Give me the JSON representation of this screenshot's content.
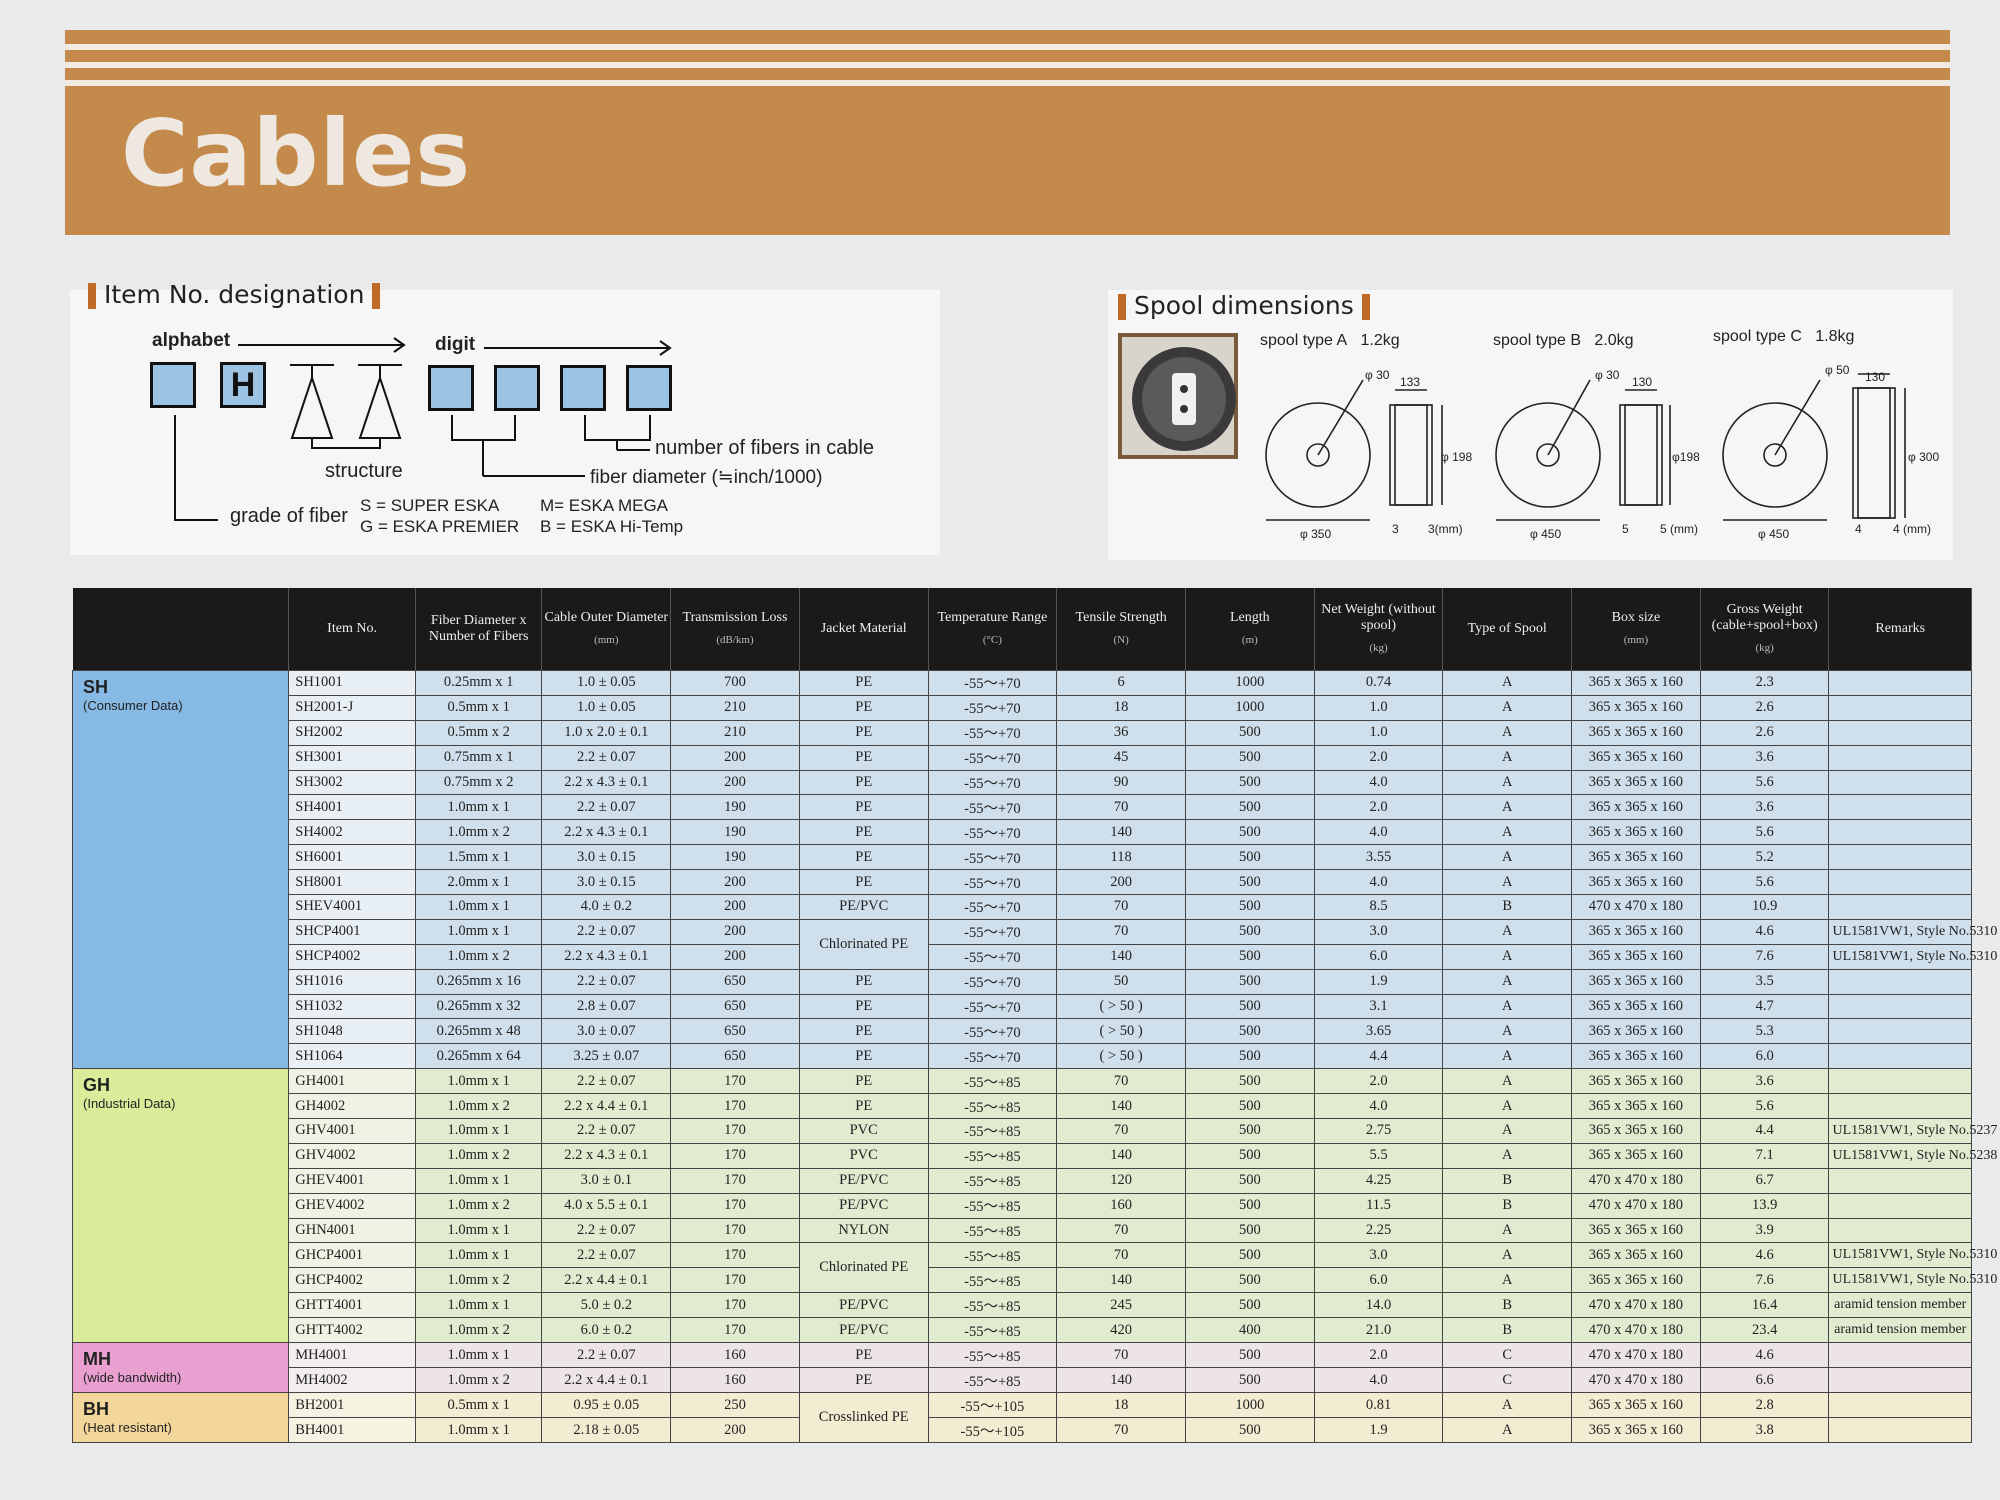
{
  "title": "Cables",
  "designation": {
    "heading": "Item No. designation",
    "alphabet": "alphabet",
    "digit": "digit",
    "box_letter": "H",
    "structure": "structure",
    "fibers_in_cable": "number of fibers in cable",
    "fiber_diameter": "fiber diameter (≒inch/1000)",
    "grade_of_fiber": "grade of fiber",
    "grades": [
      "S = SUPER ESKA",
      "G = ESKA PREMIER",
      "M= ESKA MEGA",
      "B = ESKA Hi-Temp"
    ]
  },
  "spools": {
    "heading": "Spool dimensions",
    "types": [
      {
        "label": "spool type A",
        "weight": "1.2kg",
        "hub": "φ 30",
        "width": "133",
        "height": "φ 198",
        "dia": "φ 350",
        "side": "3",
        "side_mm": "3(mm)"
      },
      {
        "label": "spool type B",
        "weight": "2.0kg",
        "hub": "φ 30",
        "width": "130",
        "height": "φ198",
        "dia": "φ 450",
        "side": "5",
        "side_mm": "5 (mm)"
      },
      {
        "label": "spool type C",
        "weight": "1.8kg",
        "hub": "φ 50",
        "width": "130",
        "height": "φ 300",
        "dia": "φ 450",
        "side": "4",
        "side_mm": "4 (mm)"
      }
    ]
  },
  "table": {
    "headers": [
      {
        "label": "",
        "unit": ""
      },
      {
        "label": "Item No.",
        "unit": ""
      },
      {
        "label": "Fiber Diameter x Number of Fibers",
        "unit": ""
      },
      {
        "label": "Cable Outer Diameter",
        "unit": "(mm)"
      },
      {
        "label": "Transmission Loss",
        "unit": "(dB/km)"
      },
      {
        "label": "Jacket Material",
        "unit": ""
      },
      {
        "label": "Temperature Range",
        "unit": "(°C)"
      },
      {
        "label": "Tensile Strength",
        "unit": "(N)"
      },
      {
        "label": "Length",
        "unit": "(m)"
      },
      {
        "label": "Net Weight (without spool)",
        "unit": "(kg)"
      },
      {
        "label": "Type of Spool",
        "unit": ""
      },
      {
        "label": "Box size",
        "unit": "(mm)"
      },
      {
        "label": "Gross Weight (cable+spool+box)",
        "unit": "(kg)"
      },
      {
        "label": "Remarks",
        "unit": ""
      }
    ],
    "groups": [
      {
        "code": "SH",
        "desc": "(Consumer Data)",
        "cls": "sh"
      },
      {
        "code": "GH",
        "desc": "(Industrial Data)",
        "cls": "gh"
      },
      {
        "code": "MH",
        "desc": "(wide bandwidth)",
        "cls": "mh"
      },
      {
        "code": "BH",
        "desc": "(Heat resistant)",
        "cls": "bh"
      }
    ],
    "rows": [
      {
        "g": 0,
        "c": [
          "SH1001",
          "0.25mm x 1",
          "1.0 ± 0.05",
          "700",
          "PE",
          "-55〜+70",
          "6",
          "1000",
          "0.74",
          "A",
          "365 x 365 x 160",
          "2.3",
          ""
        ]
      },
      {
        "g": 0,
        "c": [
          "SH2001-J",
          "0.5mm x 1",
          "1.0 ± 0.05",
          "210",
          "PE",
          "-55〜+70",
          "18",
          "1000",
          "1.0",
          "A",
          "365 x 365 x 160",
          "2.6",
          ""
        ]
      },
      {
        "g": 0,
        "c": [
          "SH2002",
          "0.5mm x 2",
          "1.0 x 2.0 ± 0.1",
          "210",
          "PE",
          "-55〜+70",
          "36",
          "500",
          "1.0",
          "A",
          "365 x 365 x 160",
          "2.6",
          ""
        ]
      },
      {
        "g": 0,
        "c": [
          "SH3001",
          "0.75mm x 1",
          "2.2 ± 0.07",
          "200",
          "PE",
          "-55〜+70",
          "45",
          "500",
          "2.0",
          "A",
          "365 x 365 x 160",
          "3.6",
          ""
        ]
      },
      {
        "g": 0,
        "c": [
          "SH3002",
          "0.75mm x 2",
          "2.2 x 4.3 ± 0.1",
          "200",
          "PE",
          "-55〜+70",
          "90",
          "500",
          "4.0",
          "A",
          "365 x 365 x 160",
          "5.6",
          ""
        ]
      },
      {
        "g": 0,
        "c": [
          "SH4001",
          "1.0mm x 1",
          "2.2 ± 0.07",
          "190",
          "PE",
          "-55〜+70",
          "70",
          "500",
          "2.0",
          "A",
          "365 x 365 x 160",
          "3.6",
          ""
        ]
      },
      {
        "g": 0,
        "c": [
          "SH4002",
          "1.0mm x 2",
          "2.2 x 4.3 ± 0.1",
          "190",
          "PE",
          "-55〜+70",
          "140",
          "500",
          "4.0",
          "A",
          "365 x 365 x 160",
          "5.6",
          ""
        ]
      },
      {
        "g": 0,
        "c": [
          "SH6001",
          "1.5mm x 1",
          "3.0 ± 0.15",
          "190",
          "PE",
          "-55〜+70",
          "118",
          "500",
          "3.55",
          "A",
          "365 x 365 x 160",
          "5.2",
          ""
        ]
      },
      {
        "g": 0,
        "c": [
          "SH8001",
          "2.0mm x 1",
          "3.0 ± 0.15",
          "200",
          "PE",
          "-55〜+70",
          "200",
          "500",
          "4.0",
          "A",
          "365 x 365 x 160",
          "5.6",
          ""
        ]
      },
      {
        "g": 0,
        "c": [
          "SHEV4001",
          "1.0mm x 1",
          "4.0 ± 0.2",
          "200",
          "PE/PVC",
          "-55〜+70",
          "70",
          "500",
          "8.5",
          "B",
          "470 x 470 x 180",
          "10.9",
          ""
        ]
      },
      {
        "g": 0,
        "c": [
          "SHCP4001",
          "1.0mm x 1",
          "2.2 ± 0.07",
          "200",
          "Chlorinated PE",
          "-55〜+70",
          "70",
          "500",
          "3.0",
          "A",
          "365 x 365 x 160",
          "4.6",
          "UL1581VW1, Style No.5310"
        ],
        "jspan": 2
      },
      {
        "g": 0,
        "c": [
          "SHCP4002",
          "1.0mm x 2",
          "2.2 x 4.3 ± 0.1",
          "200",
          "",
          "-55〜+70",
          "140",
          "500",
          "6.0",
          "A",
          "365 x 365 x 160",
          "7.6",
          "UL1581VW1, Style No.5310"
        ],
        "jskip": true
      },
      {
        "g": 0,
        "c": [
          "SH1016",
          "0.265mm x 16",
          "2.2 ± 0.07",
          "650",
          "PE",
          "-55〜+70",
          "50",
          "500",
          "1.9",
          "A",
          "365 x 365 x 160",
          "3.5",
          ""
        ]
      },
      {
        "g": 0,
        "c": [
          "SH1032",
          "0.265mm x 32",
          "2.8 ± 0.07",
          "650",
          "PE",
          "-55〜+70",
          "( > 50 )",
          "500",
          "3.1",
          "A",
          "365 x 365 x 160",
          "4.7",
          ""
        ]
      },
      {
        "g": 0,
        "c": [
          "SH1048",
          "0.265mm x 48",
          "3.0 ± 0.07",
          "650",
          "PE",
          "-55〜+70",
          "( > 50 )",
          "500",
          "3.65",
          "A",
          "365 x 365 x 160",
          "5.3",
          ""
        ]
      },
      {
        "g": 0,
        "c": [
          "SH1064",
          "0.265mm x 64",
          "3.25 ± 0.07",
          "650",
          "PE",
          "-55〜+70",
          "( > 50 )",
          "500",
          "4.4",
          "A",
          "365 x 365 x 160",
          "6.0",
          ""
        ]
      },
      {
        "g": 1,
        "c": [
          "GH4001",
          "1.0mm x 1",
          "2.2 ± 0.07",
          "170",
          "PE",
          "-55〜+85",
          "70",
          "500",
          "2.0",
          "A",
          "365 x 365 x 160",
          "3.6",
          ""
        ]
      },
      {
        "g": 1,
        "c": [
          "GH4002",
          "1.0mm x 2",
          "2.2 x 4.4 ± 0.1",
          "170",
          "PE",
          "-55〜+85",
          "140",
          "500",
          "4.0",
          "A",
          "365 x 365 x 160",
          "5.6",
          ""
        ]
      },
      {
        "g": 1,
        "c": [
          "GHV4001",
          "1.0mm x 1",
          "2.2 ± 0.07",
          "170",
          "PVC",
          "-55〜+85",
          "70",
          "500",
          "2.75",
          "A",
          "365 x 365 x 160",
          "4.4",
          "UL1581VW1, Style No.5237"
        ]
      },
      {
        "g": 1,
        "c": [
          "GHV4002",
          "1.0mm x 2",
          "2.2 x 4.3 ± 0.1",
          "170",
          "PVC",
          "-55〜+85",
          "140",
          "500",
          "5.5",
          "A",
          "365 x 365 x 160",
          "7.1",
          "UL1581VW1, Style No.5238"
        ]
      },
      {
        "g": 1,
        "c": [
          "GHEV4001",
          "1.0mm x 1",
          "3.0 ± 0.1",
          "170",
          "PE/PVC",
          "-55〜+85",
          "120",
          "500",
          "4.25",
          "B",
          "470 x 470 x 180",
          "6.7",
          ""
        ]
      },
      {
        "g": 1,
        "c": [
          "GHEV4002",
          "1.0mm x 2",
          "4.0 x 5.5 ± 0.1",
          "170",
          "PE/PVC",
          "-55〜+85",
          "160",
          "500",
          "11.5",
          "B",
          "470 x 470 x 180",
          "13.9",
          ""
        ]
      },
      {
        "g": 1,
        "c": [
          "GHN4001",
          "1.0mm x 1",
          "2.2 ± 0.07",
          "170",
          "NYLON",
          "-55〜+85",
          "70",
          "500",
          "2.25",
          "A",
          "365 x 365 x 160",
          "3.9",
          ""
        ]
      },
      {
        "g": 1,
        "c": [
          "GHCP4001",
          "1.0mm x 1",
          "2.2 ± 0.07",
          "170",
          "Chlorinated PE",
          "-55〜+85",
          "70",
          "500",
          "3.0",
          "A",
          "365 x 365 x 160",
          "4.6",
          "UL1581VW1, Style No.5310"
        ],
        "jspan": 2
      },
      {
        "g": 1,
        "c": [
          "GHCP4002",
          "1.0mm x 2",
          "2.2 x 4.4 ± 0.1",
          "170",
          "",
          "-55〜+85",
          "140",
          "500",
          "6.0",
          "A",
          "365 x 365 x 160",
          "7.6",
          "UL1581VW1, Style No.5310"
        ],
        "jskip": true
      },
      {
        "g": 1,
        "c": [
          "GHTT4001",
          "1.0mm x 1",
          "5.0 ± 0.2",
          "170",
          "PE/PVC",
          "-55〜+85",
          "245",
          "500",
          "14.0",
          "B",
          "470 x 470 x 180",
          "16.4",
          "aramid tension member"
        ]
      },
      {
        "g": 1,
        "c": [
          "GHTT4002",
          "1.0mm x 2",
          "6.0 ± 0.2",
          "170",
          "PE/PVC",
          "-55〜+85",
          "420",
          "400",
          "21.0",
          "B",
          "470 x 470 x 180",
          "23.4",
          "aramid tension member"
        ]
      },
      {
        "g": 2,
        "c": [
          "MH4001",
          "1.0mm x 1",
          "2.2 ± 0.07",
          "160",
          "PE",
          "-55〜+85",
          "70",
          "500",
          "2.0",
          "C",
          "470 x 470 x 180",
          "4.6",
          ""
        ]
      },
      {
        "g": 2,
        "c": [
          "MH4002",
          "1.0mm x 2",
          "2.2 x 4.4 ± 0.1",
          "160",
          "PE",
          "-55〜+85",
          "140",
          "500",
          "4.0",
          "C",
          "470 x 470 x 180",
          "6.6",
          ""
        ]
      },
      {
        "g": 3,
        "c": [
          "BH2001",
          "0.5mm x 1",
          "0.95 ± 0.05",
          "250",
          "Crosslinked PE",
          "-55〜+105",
          "18",
          "1000",
          "0.81",
          "A",
          "365 x 365 x 160",
          "2.8",
          ""
        ],
        "jspan": 2
      },
      {
        "g": 3,
        "c": [
          "BH4001",
          "1.0mm x 1",
          "2.18 ± 0.05",
          "200",
          "",
          "-55〜+105",
          "70",
          "500",
          "1.9",
          "A",
          "365 x 365 x 160",
          "3.8",
          ""
        ],
        "jskip": true
      }
    ]
  }
}
